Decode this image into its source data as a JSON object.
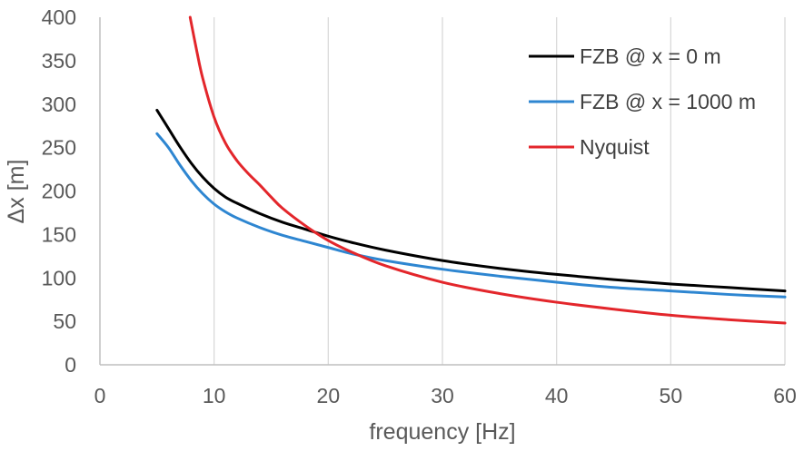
{
  "chart_data": {
    "type": "line",
    "title": "",
    "xlabel": "frequency [Hz]",
    "ylabel": "Δx [m]",
    "xlim": [
      0,
      60
    ],
    "ylim": [
      0,
      400
    ],
    "xticks": [
      0,
      10,
      20,
      30,
      40,
      50,
      60
    ],
    "yticks": [
      0,
      50,
      100,
      150,
      200,
      250,
      300,
      350,
      400
    ],
    "grid": "vertical",
    "legend_position": "top-right",
    "series": [
      {
        "name": "FZB @ x = 0 m",
        "color": "#000000",
        "x": [
          5,
          6,
          7,
          8,
          9,
          10,
          11,
          12,
          14,
          16,
          18,
          20,
          22,
          25,
          30,
          35,
          40,
          45,
          50,
          55,
          60
        ],
        "y": [
          293,
          272,
          251,
          232,
          216,
          203,
          193,
          186,
          174,
          164,
          156,
          148,
          141,
          132,
          120,
          111,
          104,
          98,
          93,
          89,
          85
        ]
      },
      {
        "name": "FZB @ x = 1000 m",
        "color": "#2e86d1",
        "x": [
          5,
          6,
          7,
          8,
          9,
          10,
          11,
          12,
          14,
          16,
          18,
          20,
          22,
          25,
          30,
          35,
          40,
          45,
          50,
          55,
          60
        ],
        "y": [
          266,
          250,
          230,
          212,
          197,
          185,
          176,
          169,
          158,
          149,
          142,
          135,
          128,
          120,
          110,
          102,
          95,
          89,
          85,
          81,
          78
        ]
      },
      {
        "name": "Nyquist",
        "color": "#e3262b",
        "x": [
          7.9,
          8.5,
          9,
          10,
          11,
          12,
          13,
          14,
          15,
          16,
          18,
          20,
          22,
          25,
          30,
          35,
          40,
          45,
          50,
          55,
          60
        ],
        "y": [
          400,
          360,
          330,
          285,
          255,
          235,
          220,
          207,
          193,
          180,
          160,
          143,
          130,
          114,
          95,
          82,
          72,
          64,
          57,
          52,
          48
        ]
      }
    ]
  }
}
